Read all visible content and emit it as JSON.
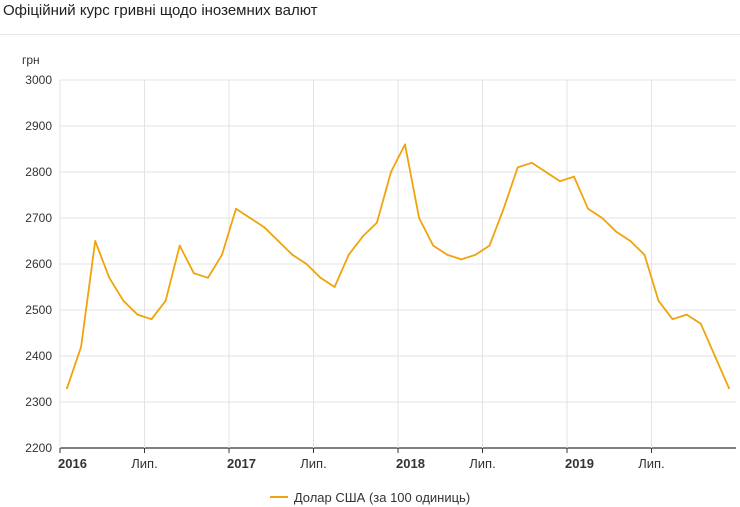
{
  "title": "Офіційний курс гривні щодо іноземних валют",
  "chart_data": {
    "type": "line",
    "title": "Офіційний курс гривні щодо іноземних валют",
    "ylabel": "грн",
    "xlabel": "",
    "ylim": [
      2200,
      3000
    ],
    "y_ticks": [
      "3000",
      "2900",
      "2800",
      "2700",
      "2600",
      "2500",
      "2400",
      "2300",
      "2200"
    ],
    "x_ticks": [
      {
        "label": "2016",
        "bold": true
      },
      {
        "label": "Лип.",
        "bold": false
      },
      {
        "label": "2017",
        "bold": true
      },
      {
        "label": "Лип.",
        "bold": false
      },
      {
        "label": "2018",
        "bold": true
      },
      {
        "label": "Лип.",
        "bold": false
      },
      {
        "label": "2019",
        "bold": true
      },
      {
        "label": "Лип.",
        "bold": false
      }
    ],
    "grid": true,
    "legend_position": "bottom-center",
    "color": "#f0a30a",
    "series": [
      {
        "name": "Долар США (за 100 одиниць)",
        "x": [
          "2016-01",
          "2016-02",
          "2016-03",
          "2016-04",
          "2016-05",
          "2016-06",
          "2016-07",
          "2016-08",
          "2016-09",
          "2016-10",
          "2016-11",
          "2016-12",
          "2017-01",
          "2017-02",
          "2017-03",
          "2017-04",
          "2017-05",
          "2017-06",
          "2017-07",
          "2017-08",
          "2017-09",
          "2017-10",
          "2017-11",
          "2017-12",
          "2018-01",
          "2018-02",
          "2018-03",
          "2018-04",
          "2018-05",
          "2018-06",
          "2018-07",
          "2018-08",
          "2018-09",
          "2018-10",
          "2018-11",
          "2018-12",
          "2019-01",
          "2019-02",
          "2019-03",
          "2019-04",
          "2019-05",
          "2019-06",
          "2019-07",
          "2019-08",
          "2019-09",
          "2019-10",
          "2019-11",
          "2019-12"
        ],
        "values": [
          2330,
          2420,
          2650,
          2570,
          2520,
          2490,
          2480,
          2520,
          2640,
          2580,
          2570,
          2620,
          2720,
          2700,
          2680,
          2650,
          2620,
          2600,
          2570,
          2550,
          2620,
          2660,
          2690,
          2800,
          2860,
          2700,
          2640,
          2620,
          2610,
          2620,
          2640,
          2720,
          2810,
          2820,
          2800,
          2780,
          2790,
          2720,
          2700,
          2670,
          2650,
          2620,
          2520,
          2480,
          2490,
          2470,
          2400,
          2330
        ]
      }
    ]
  }
}
